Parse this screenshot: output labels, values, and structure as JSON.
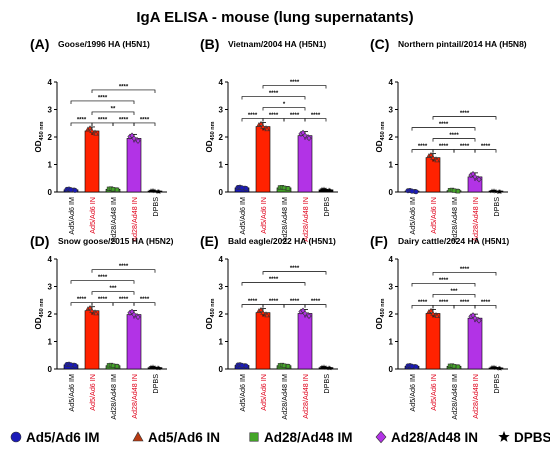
{
  "figure": {
    "title": "IgA ELISA - mouse (lung supernatants)"
  },
  "chart_data": [
    {
      "type": "bar",
      "panel_label": "(A)",
      "title": "Goose/1996 HA (H5N1)",
      "ylabel_main": "OD",
      "ylabel_sub": "450 nm",
      "ylim": [
        0,
        4
      ],
      "yticks": [
        0,
        1,
        2,
        3,
        4
      ],
      "categories": [
        "Ad5/Ad6 IM",
        "Ad5/Ad6 IN",
        "Ad28/Ad48 IM",
        "Ad28/Ad48 IN",
        "DPBS"
      ],
      "values": [
        0.08,
        2.22,
        0.1,
        1.95,
        0.03
      ],
      "significance": [
        {
          "from": 0,
          "to": 1,
          "label": "****"
        },
        {
          "from": 1,
          "to": 2,
          "label": "****"
        },
        {
          "from": 2,
          "to": 3,
          "label": "****"
        },
        {
          "from": 3,
          "to": 4,
          "label": "****"
        },
        {
          "from": 1,
          "to": 3,
          "label": "**"
        },
        {
          "from": 0,
          "to": 3,
          "label": "****"
        },
        {
          "from": 1,
          "to": 4,
          "label": "****"
        }
      ]
    },
    {
      "type": "bar",
      "panel_label": "(B)",
      "title": "Vietnam/2004 HA (H5N1)",
      "ylabel_main": "OD",
      "ylabel_sub": "450 nm",
      "ylim": [
        0,
        4
      ],
      "yticks": [
        0,
        1,
        2,
        3,
        4
      ],
      "categories": [
        "Ad5/Ad6 IM",
        "Ad5/Ad6 IN",
        "Ad28/Ad48 IM",
        "Ad28/Ad48 IN",
        "DPBS"
      ],
      "values": [
        0.15,
        2.38,
        0.15,
        2.05,
        0.08
      ],
      "significance": [
        {
          "from": 0,
          "to": 1,
          "label": "****"
        },
        {
          "from": 1,
          "to": 2,
          "label": "****"
        },
        {
          "from": 2,
          "to": 3,
          "label": "****"
        },
        {
          "from": 3,
          "to": 4,
          "label": "****"
        },
        {
          "from": 1,
          "to": 3,
          "label": "*"
        },
        {
          "from": 0,
          "to": 3,
          "label": "****"
        },
        {
          "from": 1,
          "to": 4,
          "label": "****"
        }
      ]
    },
    {
      "type": "bar",
      "panel_label": "(C)",
      "title": "Northern pintail/2014 HA (H5N8)",
      "ylabel_main": "OD",
      "ylabel_sub": "450 nm",
      "ylim": [
        0,
        4
      ],
      "yticks": [
        0,
        1,
        2,
        3,
        4
      ],
      "categories": [
        "Ad5/Ad6 IM",
        "Ad5/Ad6 IN",
        "Ad28/Ad48 IM",
        "Ad28/Ad48 IN",
        "DPBS"
      ],
      "values": [
        0.03,
        1.25,
        0.05,
        0.55,
        0.02
      ],
      "significance": [
        {
          "from": 0,
          "to": 1,
          "label": "****"
        },
        {
          "from": 1,
          "to": 2,
          "label": "****"
        },
        {
          "from": 2,
          "to": 3,
          "label": "****"
        },
        {
          "from": 3,
          "to": 4,
          "label": "****"
        },
        {
          "from": 1,
          "to": 3,
          "label": "****"
        },
        {
          "from": 0,
          "to": 3,
          "label": "****"
        },
        {
          "from": 1,
          "to": 4,
          "label": "****"
        }
      ]
    },
    {
      "type": "bar",
      "panel_label": "(D)",
      "title": "Snow goose/2015 HA (H5N2)",
      "ylabel_main": "OD",
      "ylabel_sub": "450 nm",
      "ylim": [
        0,
        4
      ],
      "yticks": [
        0,
        1,
        2,
        3,
        4
      ],
      "categories": [
        "Ad5/Ad6 IM",
        "Ad5/Ad6 IN",
        "Ad28/Ad48 IM",
        "Ad28/Ad48 IN",
        "DPBS"
      ],
      "values": [
        0.15,
        2.12,
        0.12,
        1.98,
        0.05
      ],
      "significance": [
        {
          "from": 0,
          "to": 1,
          "label": "****"
        },
        {
          "from": 1,
          "to": 2,
          "label": "****"
        },
        {
          "from": 2,
          "to": 3,
          "label": "****"
        },
        {
          "from": 3,
          "to": 4,
          "label": "****"
        },
        {
          "from": 1,
          "to": 3,
          "label": "***"
        },
        {
          "from": 0,
          "to": 3,
          "label": "****"
        },
        {
          "from": 1,
          "to": 4,
          "label": "****"
        }
      ]
    },
    {
      "type": "bar",
      "panel_label": "(E)",
      "title": "Bald eagle/2022 HA (H5N1)",
      "ylabel_main": "OD",
      "ylabel_sub": "450 nm",
      "ylim": [
        0,
        4
      ],
      "yticks": [
        0,
        1,
        2,
        3,
        4
      ],
      "categories": [
        "Ad5/Ad6 IM",
        "Ad5/Ad6 IN",
        "Ad28/Ad48 IM",
        "Ad28/Ad48 IN",
        "DPBS"
      ],
      "values": [
        0.13,
        2.05,
        0.12,
        2.02,
        0.05
      ],
      "significance": [
        {
          "from": 0,
          "to": 1,
          "label": "****"
        },
        {
          "from": 1,
          "to": 2,
          "label": "****"
        },
        {
          "from": 2,
          "to": 3,
          "label": "****"
        },
        {
          "from": 3,
          "to": 4,
          "label": "****"
        },
        {
          "from": 0,
          "to": 3,
          "label": "****"
        },
        {
          "from": 1,
          "to": 4,
          "label": "****"
        }
      ]
    },
    {
      "type": "bar",
      "panel_label": "(F)",
      "title": "Dairy cattle/2024 HA (H5N1)",
      "ylabel_main": "OD",
      "ylabel_sub": "450 nm",
      "ylim": [
        0,
        4
      ],
      "yticks": [
        0,
        1,
        2,
        3,
        4
      ],
      "categories": [
        "Ad5/Ad6 IM",
        "Ad5/Ad6 IN",
        "Ad28/Ad48 IM",
        "Ad28/Ad48 IN",
        "DPBS"
      ],
      "values": [
        0.1,
        2.02,
        0.1,
        1.85,
        0.04
      ],
      "significance": [
        {
          "from": 0,
          "to": 1,
          "label": "****"
        },
        {
          "from": 1,
          "to": 2,
          "label": "****"
        },
        {
          "from": 2,
          "to": 3,
          "label": "****"
        },
        {
          "from": 3,
          "to": 4,
          "label": "****"
        },
        {
          "from": 1,
          "to": 3,
          "label": "***"
        },
        {
          "from": 0,
          "to": 3,
          "label": "****"
        },
        {
          "from": 1,
          "to": 4,
          "label": "****"
        }
      ]
    }
  ],
  "groups": [
    {
      "name": "Ad5/Ad6 IM",
      "color": "#1a1ab8",
      "marker": "circle",
      "label_color": "#000000"
    },
    {
      "name": "Ad5/Ad6 IN",
      "color": "#ff2200",
      "marker": "triangle",
      "label_color": "#e0001a"
    },
    {
      "name": "Ad28/Ad48 IM",
      "color": "#44a628",
      "marker": "square",
      "label_color": "#000000"
    },
    {
      "name": "Ad28/Ad48 IN",
      "color": "#b233e6",
      "marker": "diamond",
      "label_color": "#e0001a"
    },
    {
      "name": "DPBS",
      "color": "#000000",
      "marker": "star",
      "label_color": "#000000"
    }
  ],
  "legend": {
    "position": "bottom",
    "items": [
      {
        "label": "Ad5/Ad6 IM",
        "marker": "circle",
        "color": "#1a1ab8"
      },
      {
        "label": "Ad5/Ad6 IN",
        "marker": "triangle",
        "color": "#b83a12"
      },
      {
        "label": "Ad28/Ad48 IM",
        "marker": "square",
        "color": "#44a628"
      },
      {
        "label": "Ad28/Ad48 IN",
        "marker": "diamond",
        "color": "#b233e6"
      },
      {
        "label": "DPBS",
        "marker": "star",
        "color": "#000000"
      }
    ]
  }
}
